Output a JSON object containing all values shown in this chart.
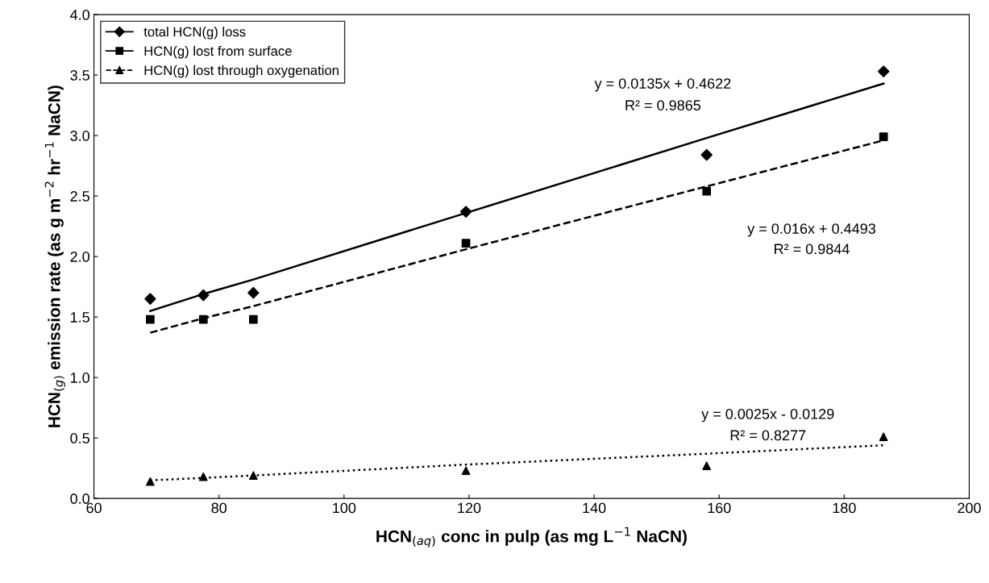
{
  "chart_data": {
    "type": "scatter",
    "xlabel": "HCN$_{(aq)}$ conc in pulp (as mg L$^{−1}$ NaCN)",
    "ylabel": "HCN$_{(g)}$ emission rate (as g m$^{−2}$ hr$^{−1}$ NaCN)",
    "xlim": [
      60,
      200
    ],
    "xticks": [
      60,
      80,
      100,
      120,
      140,
      160,
      180,
      200
    ],
    "ylim": [
      0,
      4
    ],
    "yticks": [
      {
        "value": 0,
        "label": "0.0"
      },
      {
        "value": 0.5,
        "label": "0.5"
      },
      {
        "value": 1,
        "label": "1.0"
      },
      {
        "value": 1.5,
        "label": "1.5"
      },
      {
        "value": 2,
        "label": "2.0"
      },
      {
        "value": 2.5,
        "label": "2.5"
      },
      {
        "value": 3,
        "label": "3.0"
      },
      {
        "value": 3.5,
        "label": "3.5"
      },
      {
        "value": 4,
        "label": "4.0"
      }
    ],
    "grid": false,
    "legend": "top left",
    "x": [
      69,
      77.5,
      85.5,
      119.5,
      158,
      186.3
    ],
    "series": [
      {
        "name": "total HCN(g) loss",
        "color": "#000000",
        "marker": "diamond",
        "line_style": "solid",
        "values": [
          1.65,
          1.68,
          1.7,
          2.37,
          2.84,
          3.53
        ]
      },
      {
        "name": "HCN(g) lost from surface",
        "color": "#000000",
        "marker": "square",
        "line_style": "solid",
        "values": [
          1.48,
          1.48,
          1.48,
          2.11,
          2.54,
          2.99
        ]
      },
      {
        "name": "HCN(g) lost through oxygenation",
        "color": "#000000",
        "marker": "triangle",
        "line_style": "dashed",
        "values": [
          0.14,
          0.18,
          0.19,
          0.23,
          0.27,
          0.51
        ]
      },
      {
        "type": "line",
        "color": "#000000",
        "line_style": "solid",
        "marker": "none",
        "values": [
          1.55,
          1.69,
          1.81,
          2.36,
          2.98,
          3.43
        ]
      },
      {
        "type": "line",
        "color": "#000000",
        "line_style": "dashed",
        "marker": "none",
        "values": [
          1.37,
          1.49,
          1.59,
          2.06,
          2.58,
          2.96
        ]
      },
      {
        "type": "line",
        "color": "#000000",
        "line_style": "dotted",
        "marker": "none",
        "values": [
          0.15,
          0.17,
          0.19,
          0.28,
          0.37,
          0.44
        ]
      }
    ],
    "annotations": [
      "y = 0.0135x + 0.4622",
      "R² = 0.9865",
      "y = 0.016x + 0.4493",
      "R² = 0.9844",
      "y = 0.0025x - 0.0129",
      "R² = 0.8277"
    ]
  }
}
